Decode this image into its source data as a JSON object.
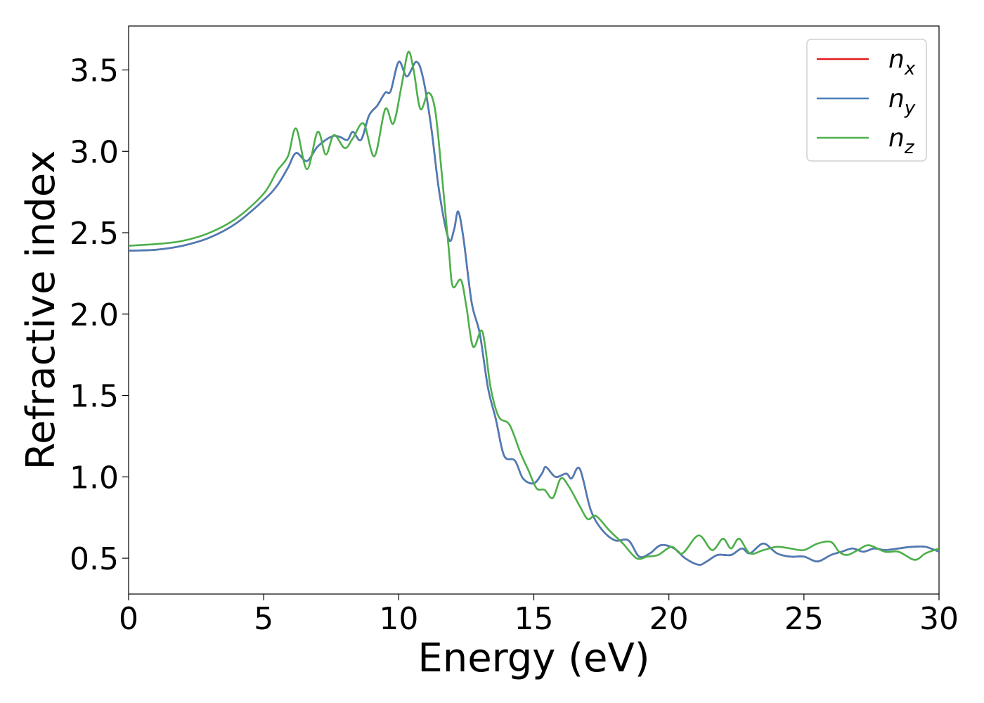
{
  "chart_data": {
    "type": "line",
    "xlabel": "Energy (eV)",
    "ylabel": "Refractive index",
    "xlim": [
      0,
      30
    ],
    "ylim": [
      0.28,
      3.77
    ],
    "xticks": [
      "0",
      "5",
      "10",
      "15",
      "20",
      "25",
      "30"
    ],
    "yticks": [
      "0.5",
      "1.0",
      "1.5",
      "2.0",
      "2.5",
      "3.0",
      "3.5"
    ],
    "grid": false,
    "legend_position": "top-right",
    "series": [
      {
        "name": "n",
        "subscript": "x",
        "color": "#e41a1c",
        "points": [
          [
            0,
            2.39
          ],
          [
            1,
            2.395
          ],
          [
            2,
            2.42
          ],
          [
            3,
            2.47
          ],
          [
            4,
            2.56
          ],
          [
            5,
            2.7
          ],
          [
            5.5,
            2.79
          ],
          [
            5.9,
            2.9
          ],
          [
            6.2,
            2.99
          ],
          [
            6.6,
            2.94
          ],
          [
            7,
            3.03
          ],
          [
            7.5,
            3.09
          ],
          [
            7.8,
            3.09
          ],
          [
            8.1,
            3.07
          ],
          [
            8.3,
            3.12
          ],
          [
            8.6,
            3.07
          ],
          [
            8.9,
            3.22
          ],
          [
            9.2,
            3.28
          ],
          [
            9.5,
            3.36
          ],
          [
            9.7,
            3.37
          ],
          [
            10,
            3.55
          ],
          [
            10.3,
            3.46
          ],
          [
            10.65,
            3.55
          ],
          [
            10.9,
            3.45
          ],
          [
            11.2,
            3.15
          ],
          [
            11.5,
            2.75
          ],
          [
            11.85,
            2.46
          ],
          [
            12.05,
            2.52
          ],
          [
            12.2,
            2.63
          ],
          [
            12.4,
            2.46
          ],
          [
            12.7,
            2.07
          ],
          [
            13.0,
            1.88
          ],
          [
            13.3,
            1.55
          ],
          [
            13.6,
            1.35
          ],
          [
            13.9,
            1.13
          ],
          [
            14.3,
            1.1
          ],
          [
            14.6,
            0.99
          ],
          [
            15,
            0.96
          ],
          [
            15.3,
            1.02
          ],
          [
            15.45,
            1.06
          ],
          [
            15.8,
            1.0
          ],
          [
            16.2,
            1.02
          ],
          [
            16.4,
            0.99
          ],
          [
            16.7,
            1.05
          ],
          [
            17.1,
            0.8
          ],
          [
            17.5,
            0.68
          ],
          [
            18,
            0.61
          ],
          [
            18.5,
            0.61
          ],
          [
            18.9,
            0.51
          ],
          [
            19.3,
            0.53
          ],
          [
            19.7,
            0.58
          ],
          [
            20.2,
            0.56
          ],
          [
            20.6,
            0.5
          ],
          [
            21.1,
            0.46
          ],
          [
            21.4,
            0.48
          ],
          [
            21.8,
            0.52
          ],
          [
            22.3,
            0.52
          ],
          [
            22.7,
            0.56
          ],
          [
            23,
            0.53
          ],
          [
            23.5,
            0.59
          ],
          [
            24,
            0.53
          ],
          [
            24.5,
            0.51
          ],
          [
            25,
            0.51
          ],
          [
            25.5,
            0.48
          ],
          [
            26,
            0.52
          ],
          [
            26.4,
            0.54
          ],
          [
            26.8,
            0.56
          ],
          [
            27.2,
            0.54
          ],
          [
            27.6,
            0.56
          ],
          [
            28,
            0.55
          ],
          [
            28.5,
            0.56
          ],
          [
            29,
            0.57
          ],
          [
            29.5,
            0.57
          ],
          [
            30,
            0.54
          ]
        ]
      },
      {
        "name": "n",
        "subscript": "y",
        "color": "#4a7db8",
        "points": [
          [
            0,
            2.39
          ],
          [
            1,
            2.395
          ],
          [
            2,
            2.42
          ],
          [
            3,
            2.47
          ],
          [
            4,
            2.56
          ],
          [
            5,
            2.7
          ],
          [
            5.5,
            2.79
          ],
          [
            5.9,
            2.9
          ],
          [
            6.2,
            2.99
          ],
          [
            6.6,
            2.94
          ],
          [
            7,
            3.03
          ],
          [
            7.5,
            3.09
          ],
          [
            7.8,
            3.09
          ],
          [
            8.1,
            3.07
          ],
          [
            8.3,
            3.12
          ],
          [
            8.6,
            3.07
          ],
          [
            8.9,
            3.22
          ],
          [
            9.2,
            3.28
          ],
          [
            9.5,
            3.36
          ],
          [
            9.7,
            3.37
          ],
          [
            10,
            3.55
          ],
          [
            10.3,
            3.46
          ],
          [
            10.65,
            3.55
          ],
          [
            10.9,
            3.45
          ],
          [
            11.2,
            3.15
          ],
          [
            11.5,
            2.75
          ],
          [
            11.85,
            2.46
          ],
          [
            12.05,
            2.52
          ],
          [
            12.2,
            2.63
          ],
          [
            12.4,
            2.46
          ],
          [
            12.7,
            2.07
          ],
          [
            13.0,
            1.88
          ],
          [
            13.3,
            1.55
          ],
          [
            13.6,
            1.35
          ],
          [
            13.9,
            1.13
          ],
          [
            14.3,
            1.1
          ],
          [
            14.6,
            0.99
          ],
          [
            15,
            0.96
          ],
          [
            15.3,
            1.02
          ],
          [
            15.45,
            1.06
          ],
          [
            15.8,
            1.0
          ],
          [
            16.2,
            1.02
          ],
          [
            16.4,
            0.99
          ],
          [
            16.7,
            1.05
          ],
          [
            17.1,
            0.8
          ],
          [
            17.5,
            0.68
          ],
          [
            18,
            0.61
          ],
          [
            18.5,
            0.61
          ],
          [
            18.9,
            0.51
          ],
          [
            19.3,
            0.53
          ],
          [
            19.7,
            0.58
          ],
          [
            20.2,
            0.56
          ],
          [
            20.6,
            0.5
          ],
          [
            21.1,
            0.46
          ],
          [
            21.4,
            0.48
          ],
          [
            21.8,
            0.52
          ],
          [
            22.3,
            0.52
          ],
          [
            22.7,
            0.56
          ],
          [
            23,
            0.53
          ],
          [
            23.5,
            0.59
          ],
          [
            24,
            0.53
          ],
          [
            24.5,
            0.51
          ],
          [
            25,
            0.51
          ],
          [
            25.5,
            0.48
          ],
          [
            26,
            0.52
          ],
          [
            26.4,
            0.54
          ],
          [
            26.8,
            0.56
          ],
          [
            27.2,
            0.54
          ],
          [
            27.6,
            0.56
          ],
          [
            28,
            0.55
          ],
          [
            28.5,
            0.56
          ],
          [
            29,
            0.57
          ],
          [
            29.5,
            0.57
          ],
          [
            30,
            0.54
          ]
        ]
      },
      {
        "name": "n",
        "subscript": "z",
        "color": "#4daf4a",
        "points": [
          [
            0,
            2.42
          ],
          [
            1,
            2.43
          ],
          [
            2,
            2.45
          ],
          [
            3,
            2.5
          ],
          [
            4,
            2.59
          ],
          [
            5,
            2.74
          ],
          [
            5.5,
            2.88
          ],
          [
            5.9,
            2.97
          ],
          [
            6.2,
            3.14
          ],
          [
            6.6,
            2.89
          ],
          [
            7,
            3.12
          ],
          [
            7.3,
            2.98
          ],
          [
            7.6,
            3.1
          ],
          [
            8,
            3.02
          ],
          [
            8.3,
            3.08
          ],
          [
            8.7,
            3.17
          ],
          [
            9.1,
            2.97
          ],
          [
            9.5,
            3.26
          ],
          [
            9.8,
            3.17
          ],
          [
            10.1,
            3.4
          ],
          [
            10.35,
            3.61
          ],
          [
            10.55,
            3.5
          ],
          [
            10.8,
            3.26
          ],
          [
            11.1,
            3.36
          ],
          [
            11.35,
            3.25
          ],
          [
            11.6,
            2.85
          ],
          [
            11.85,
            2.4
          ],
          [
            12.0,
            2.17
          ],
          [
            12.3,
            2.21
          ],
          [
            12.5,
            2.05
          ],
          [
            12.75,
            1.8
          ],
          [
            13.05,
            1.9
          ],
          [
            13.2,
            1.8
          ],
          [
            13.4,
            1.55
          ],
          [
            13.7,
            1.37
          ],
          [
            14.1,
            1.32
          ],
          [
            14.5,
            1.15
          ],
          [
            14.8,
            1.04
          ],
          [
            15.1,
            0.93
          ],
          [
            15.4,
            0.92
          ],
          [
            15.7,
            0.87
          ],
          [
            16.0,
            0.99
          ],
          [
            16.3,
            0.94
          ],
          [
            16.7,
            0.82
          ],
          [
            17.0,
            0.74
          ],
          [
            17.3,
            0.76
          ],
          [
            17.8,
            0.67
          ],
          [
            18.3,
            0.59
          ],
          [
            18.8,
            0.5
          ],
          [
            19.2,
            0.51
          ],
          [
            19.6,
            0.52
          ],
          [
            20.1,
            0.57
          ],
          [
            20.5,
            0.53
          ],
          [
            21.1,
            0.64
          ],
          [
            21.6,
            0.55
          ],
          [
            22.0,
            0.62
          ],
          [
            22.3,
            0.56
          ],
          [
            22.6,
            0.62
          ],
          [
            23.0,
            0.53
          ],
          [
            23.5,
            0.55
          ],
          [
            24.0,
            0.57
          ],
          [
            24.5,
            0.56
          ],
          [
            25.0,
            0.55
          ],
          [
            25.5,
            0.59
          ],
          [
            26.0,
            0.6
          ],
          [
            26.3,
            0.54
          ],
          [
            26.6,
            0.52
          ],
          [
            27.0,
            0.55
          ],
          [
            27.4,
            0.58
          ],
          [
            28.0,
            0.54
          ],
          [
            28.5,
            0.54
          ],
          [
            29.1,
            0.49
          ],
          [
            29.5,
            0.53
          ],
          [
            30,
            0.56
          ]
        ]
      }
    ]
  }
}
